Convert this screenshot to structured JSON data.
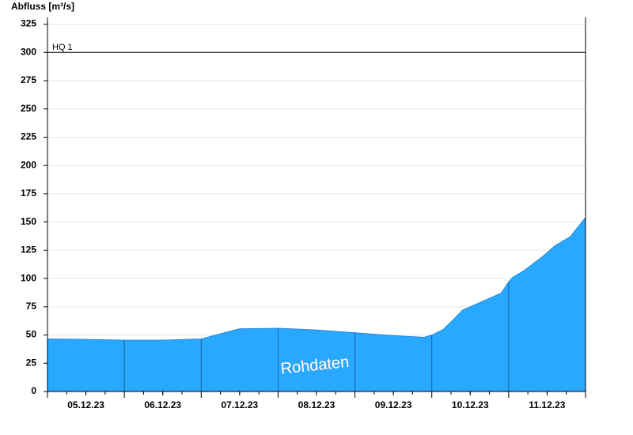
{
  "chart_data": {
    "type": "area",
    "y_label": "Abfluss [m³/s]",
    "color": "#29a8ff",
    "x": [
      0,
      0.5,
      1,
      1.5,
      2,
      2.3,
      2.5,
      3,
      3.5,
      4,
      4.5,
      4.9,
      5,
      5.15,
      5.3,
      5.4,
      5.6,
      5.9,
      6,
      6.05,
      6.2,
      6.45,
      6.6,
      6.8,
      7
    ],
    "values": [
      46.5,
      46.2,
      45.5,
      45.5,
      46.5,
      52,
      55.5,
      56,
      54.5,
      52,
      49.5,
      48,
      50,
      55,
      65,
      72,
      78,
      87,
      97,
      101,
      107,
      120,
      129,
      137,
      154
    ],
    "xlim": [
      0,
      7
    ],
    "xticks": [
      {
        "value": 0.5,
        "label": "05.12.23"
      },
      {
        "value": 1.5,
        "label": "06.12.23"
      },
      {
        "value": 2.5,
        "label": "07.12.23"
      },
      {
        "value": 3.5,
        "label": "08.12.23"
      },
      {
        "value": 4.5,
        "label": "09.12.23"
      },
      {
        "value": 5.5,
        "label": "10.12.23"
      },
      {
        "value": 6.5,
        "label": "11.12.23"
      }
    ],
    "ylim": [
      0,
      331
    ],
    "yticks": [
      0,
      25,
      50,
      75,
      100,
      125,
      150,
      175,
      200,
      225,
      250,
      275,
      300,
      325
    ],
    "grid": true,
    "annotations": [
      {
        "label": "HQ 1",
        "value": 300
      }
    ],
    "watermark": "Rohdaten"
  }
}
